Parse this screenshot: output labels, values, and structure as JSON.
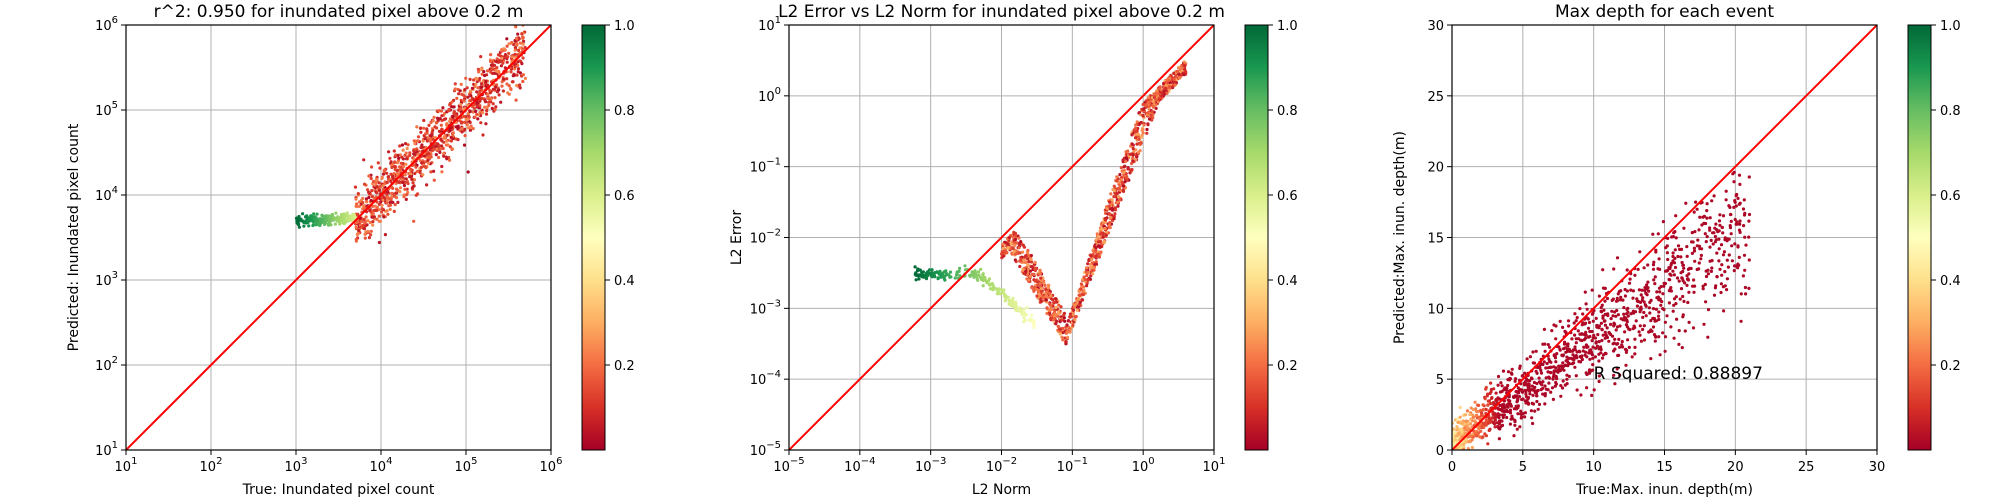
{
  "chart_data": [
    {
      "type": "scatter",
      "title": "r^2: 0.950 for inundated pixel above 0.2 m",
      "xlabel": "True: Inundated pixel count",
      "ylabel": "Predicted: Inundated pixel count",
      "xscale": "log",
      "yscale": "log",
      "xlim": [
        10,
        1000000
      ],
      "ylim": [
        10,
        1000000
      ],
      "grid": true,
      "colorbar": {
        "colormap": "RdYlGn",
        "range": [
          0,
          1
        ],
        "ticks": [
          "0.2",
          "0.4",
          "0.6",
          "0.8",
          "1.0"
        ]
      },
      "reference_line": "y = x",
      "xtick_labels": [
        {
          "v": 10,
          "base": "10",
          "exp": "1"
        },
        {
          "v": 100,
          "base": "10",
          "exp": "2"
        },
        {
          "v": 1000,
          "base": "10",
          "exp": "3"
        },
        {
          "v": 10000,
          "base": "10",
          "exp": "4"
        },
        {
          "v": 100000,
          "base": "10",
          "exp": "5"
        },
        {
          "v": 1000000,
          "base": "10",
          "exp": "6"
        }
      ],
      "ytick_labels": [
        {
          "v": 10,
          "base": "10",
          "exp": "1"
        },
        {
          "v": 100,
          "base": "10",
          "exp": "2"
        },
        {
          "v": 1000,
          "base": "10",
          "exp": "3"
        },
        {
          "v": 10000,
          "base": "10",
          "exp": "4"
        },
        {
          "v": 100000,
          "base": "10",
          "exp": "5"
        },
        {
          "v": 1000000,
          "base": "10",
          "exp": "6"
        }
      ],
      "clusters": [
        {
          "desc": "main diagonal band",
          "x_range": [
            5000,
            500000
          ],
          "slope": 1.0,
          "spread_decades": 0.18,
          "color_value": [
            0.02,
            0.25
          ],
          "n": 1100
        },
        {
          "desc": "flat tail at low counts",
          "x_range": [
            1000,
            5000
          ],
          "y": 5000,
          "spread_decades": 0.03,
          "color_value": [
            0.6,
            1.0
          ],
          "n": 220
        }
      ]
    },
    {
      "type": "scatter",
      "title": "L2 Error vs L2 Norm for inundated pixel above 0.2 m",
      "xlabel": "L2 Norm",
      "ylabel": "L2 Error",
      "xscale": "log",
      "yscale": "log",
      "xlim": [
        1e-05,
        10
      ],
      "ylim": [
        1e-05,
        10
      ],
      "grid": true,
      "colorbar": {
        "colormap": "RdYlGn",
        "range": [
          0,
          1
        ],
        "ticks": [
          "0.2",
          "0.4",
          "0.6",
          "0.8",
          "1.0"
        ]
      },
      "reference_line": "y = x",
      "xtick_labels": [
        {
          "v": 1e-05,
          "base": "10",
          "exp": "−5"
        },
        {
          "v": 0.0001,
          "base": "10",
          "exp": "−4"
        },
        {
          "v": 0.001,
          "base": "10",
          "exp": "−3"
        },
        {
          "v": 0.01,
          "base": "10",
          "exp": "−2"
        },
        {
          "v": 0.1,
          "base": "10",
          "exp": "−1"
        },
        {
          "v": 1,
          "base": "10",
          "exp": "0"
        },
        {
          "v": 10,
          "base": "10",
          "exp": "1"
        }
      ],
      "ytick_labels": [
        {
          "v": 1e-05,
          "base": "10",
          "exp": "−5"
        },
        {
          "v": 0.0001,
          "base": "10",
          "exp": "−4"
        },
        {
          "v": 0.001,
          "base": "10",
          "exp": "−3"
        },
        {
          "v": 0.01,
          "base": "10",
          "exp": "−2"
        },
        {
          "v": 0.1,
          "base": "10",
          "exp": "−1"
        },
        {
          "v": 1,
          "base": "10",
          "exp": "0"
        },
        {
          "v": 10,
          "base": "10",
          "exp": "1"
        }
      ],
      "clusters": [
        {
          "desc": "V-shaped wedge",
          "x_range": [
            0.01,
            4
          ],
          "min_point": [
            0.08,
            0.0003
          ],
          "color_value": [
            0.02,
            0.3
          ],
          "n": 1100
        },
        {
          "desc": "flat tail",
          "x_range": [
            0.0006,
            0.03
          ],
          "y": 0.003,
          "color_value": [
            0.5,
            1.0
          ],
          "n": 200
        }
      ]
    },
    {
      "type": "scatter",
      "title": "Max depth for each event",
      "xlabel": "True:Max. inun. depth(m)",
      "ylabel": "Predicted:Max. inun. depth(m)",
      "xlim": [
        0,
        30
      ],
      "ylim": [
        0,
        30
      ],
      "grid": true,
      "colorbar": {
        "colormap": "RdYlGn",
        "range": [
          0,
          1
        ],
        "ticks": [
          "0.2",
          "0.4",
          "0.6",
          "0.8",
          "1.0"
        ]
      },
      "reference_line": "y = x",
      "xticks": [
        0,
        5,
        10,
        15,
        20,
        25,
        30
      ],
      "yticks": [
        0,
        5,
        10,
        15,
        20,
        25,
        30
      ],
      "annotation": {
        "text": "R Squared: 0.88897",
        "x": 10,
        "y": 5
      },
      "clusters": [
        {
          "desc": "cloud along diagonal",
          "x_range": [
            0,
            21
          ],
          "slope": 0.72,
          "spread": 1.6,
          "color_value": [
            0.02,
            0.5
          ],
          "n": 1300
        }
      ]
    }
  ]
}
